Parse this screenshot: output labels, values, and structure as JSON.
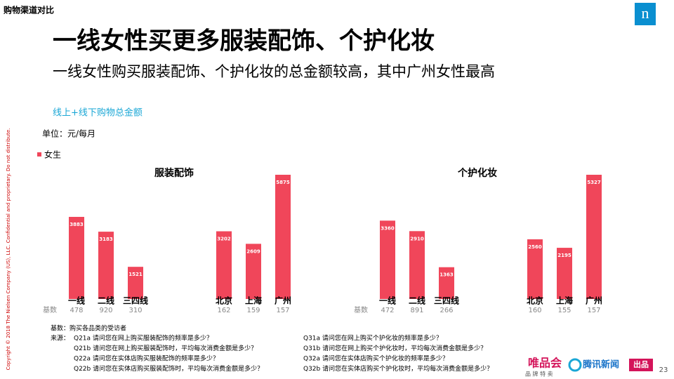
{
  "header": {
    "section": "购物渠道对比",
    "title": "一线女性买更多服装配饰、个护化妆",
    "subtitle": "一线女性购买服装配饰、个护化妆的总金额较高，其中广州女性最高",
    "metric": "线上+线下购物总金额",
    "unit": "单位：元/每月"
  },
  "chart_data": [
    {
      "type": "bar",
      "title": "服装配饰",
      "categories": [
        "一线",
        "二线",
        "三四线",
        "北京",
        "上海",
        "广州"
      ],
      "series": [
        {
          "name": "女生",
          "color": "#f0465a",
          "values": [
            3883,
            3183,
            1521,
            3202,
            2609,
            5875
          ]
        }
      ],
      "base_label": "基数",
      "base_counts": [
        478,
        920,
        310,
        162,
        159,
        157
      ]
    },
    {
      "type": "bar",
      "title": "个护化妆",
      "categories": [
        "一线",
        "二线",
        "三四线",
        "北京",
        "上海",
        "广州"
      ],
      "series": [
        {
          "color": "#f0465a",
          "values": [
            3360,
            2910,
            1363,
            2560,
            2195,
            5327
          ]
        }
      ],
      "base_label": "基数",
      "base_counts": [
        472,
        891,
        266,
        160,
        155,
        157
      ]
    }
  ],
  "notes": {
    "base": "基数：购买各品类的受访者",
    "source": "来源：",
    "left": [
      "Q21a 请问您在网上购买服装配饰的频率是多少？",
      "Q21b 请问您在网上购买服装配饰时，平均每次消费金额是多少？",
      "Q22a 请问您在实体店购买服装配饰的频率是多少？",
      "Q22b 请问您在实体店购买服装配饰时，平均每次消费金额是多少？"
    ],
    "right": [
      "Q31a 请问您在网上购买个护化妆的频率是多少？",
      "Q31b 请问您在网上购买个护化妆时，平均每次消费金额是多少？",
      "Q32a 请问您在实体店购买个护化妆的频率是多少？",
      "Q32b 请问您在实体店购买个护化妆时，平均每次消费金额是多少？"
    ]
  },
  "copyright": "Copyright © 2018 The Nielsen Company (US), LLC. Confidential and proprietary. Do not distribute.",
  "logo": "n",
  "brand1": "唯品会",
  "brand1_sub": "品 牌 特 卖",
  "brand2": "腾讯新闻",
  "brand2_tag": "出品",
  "page": "23"
}
